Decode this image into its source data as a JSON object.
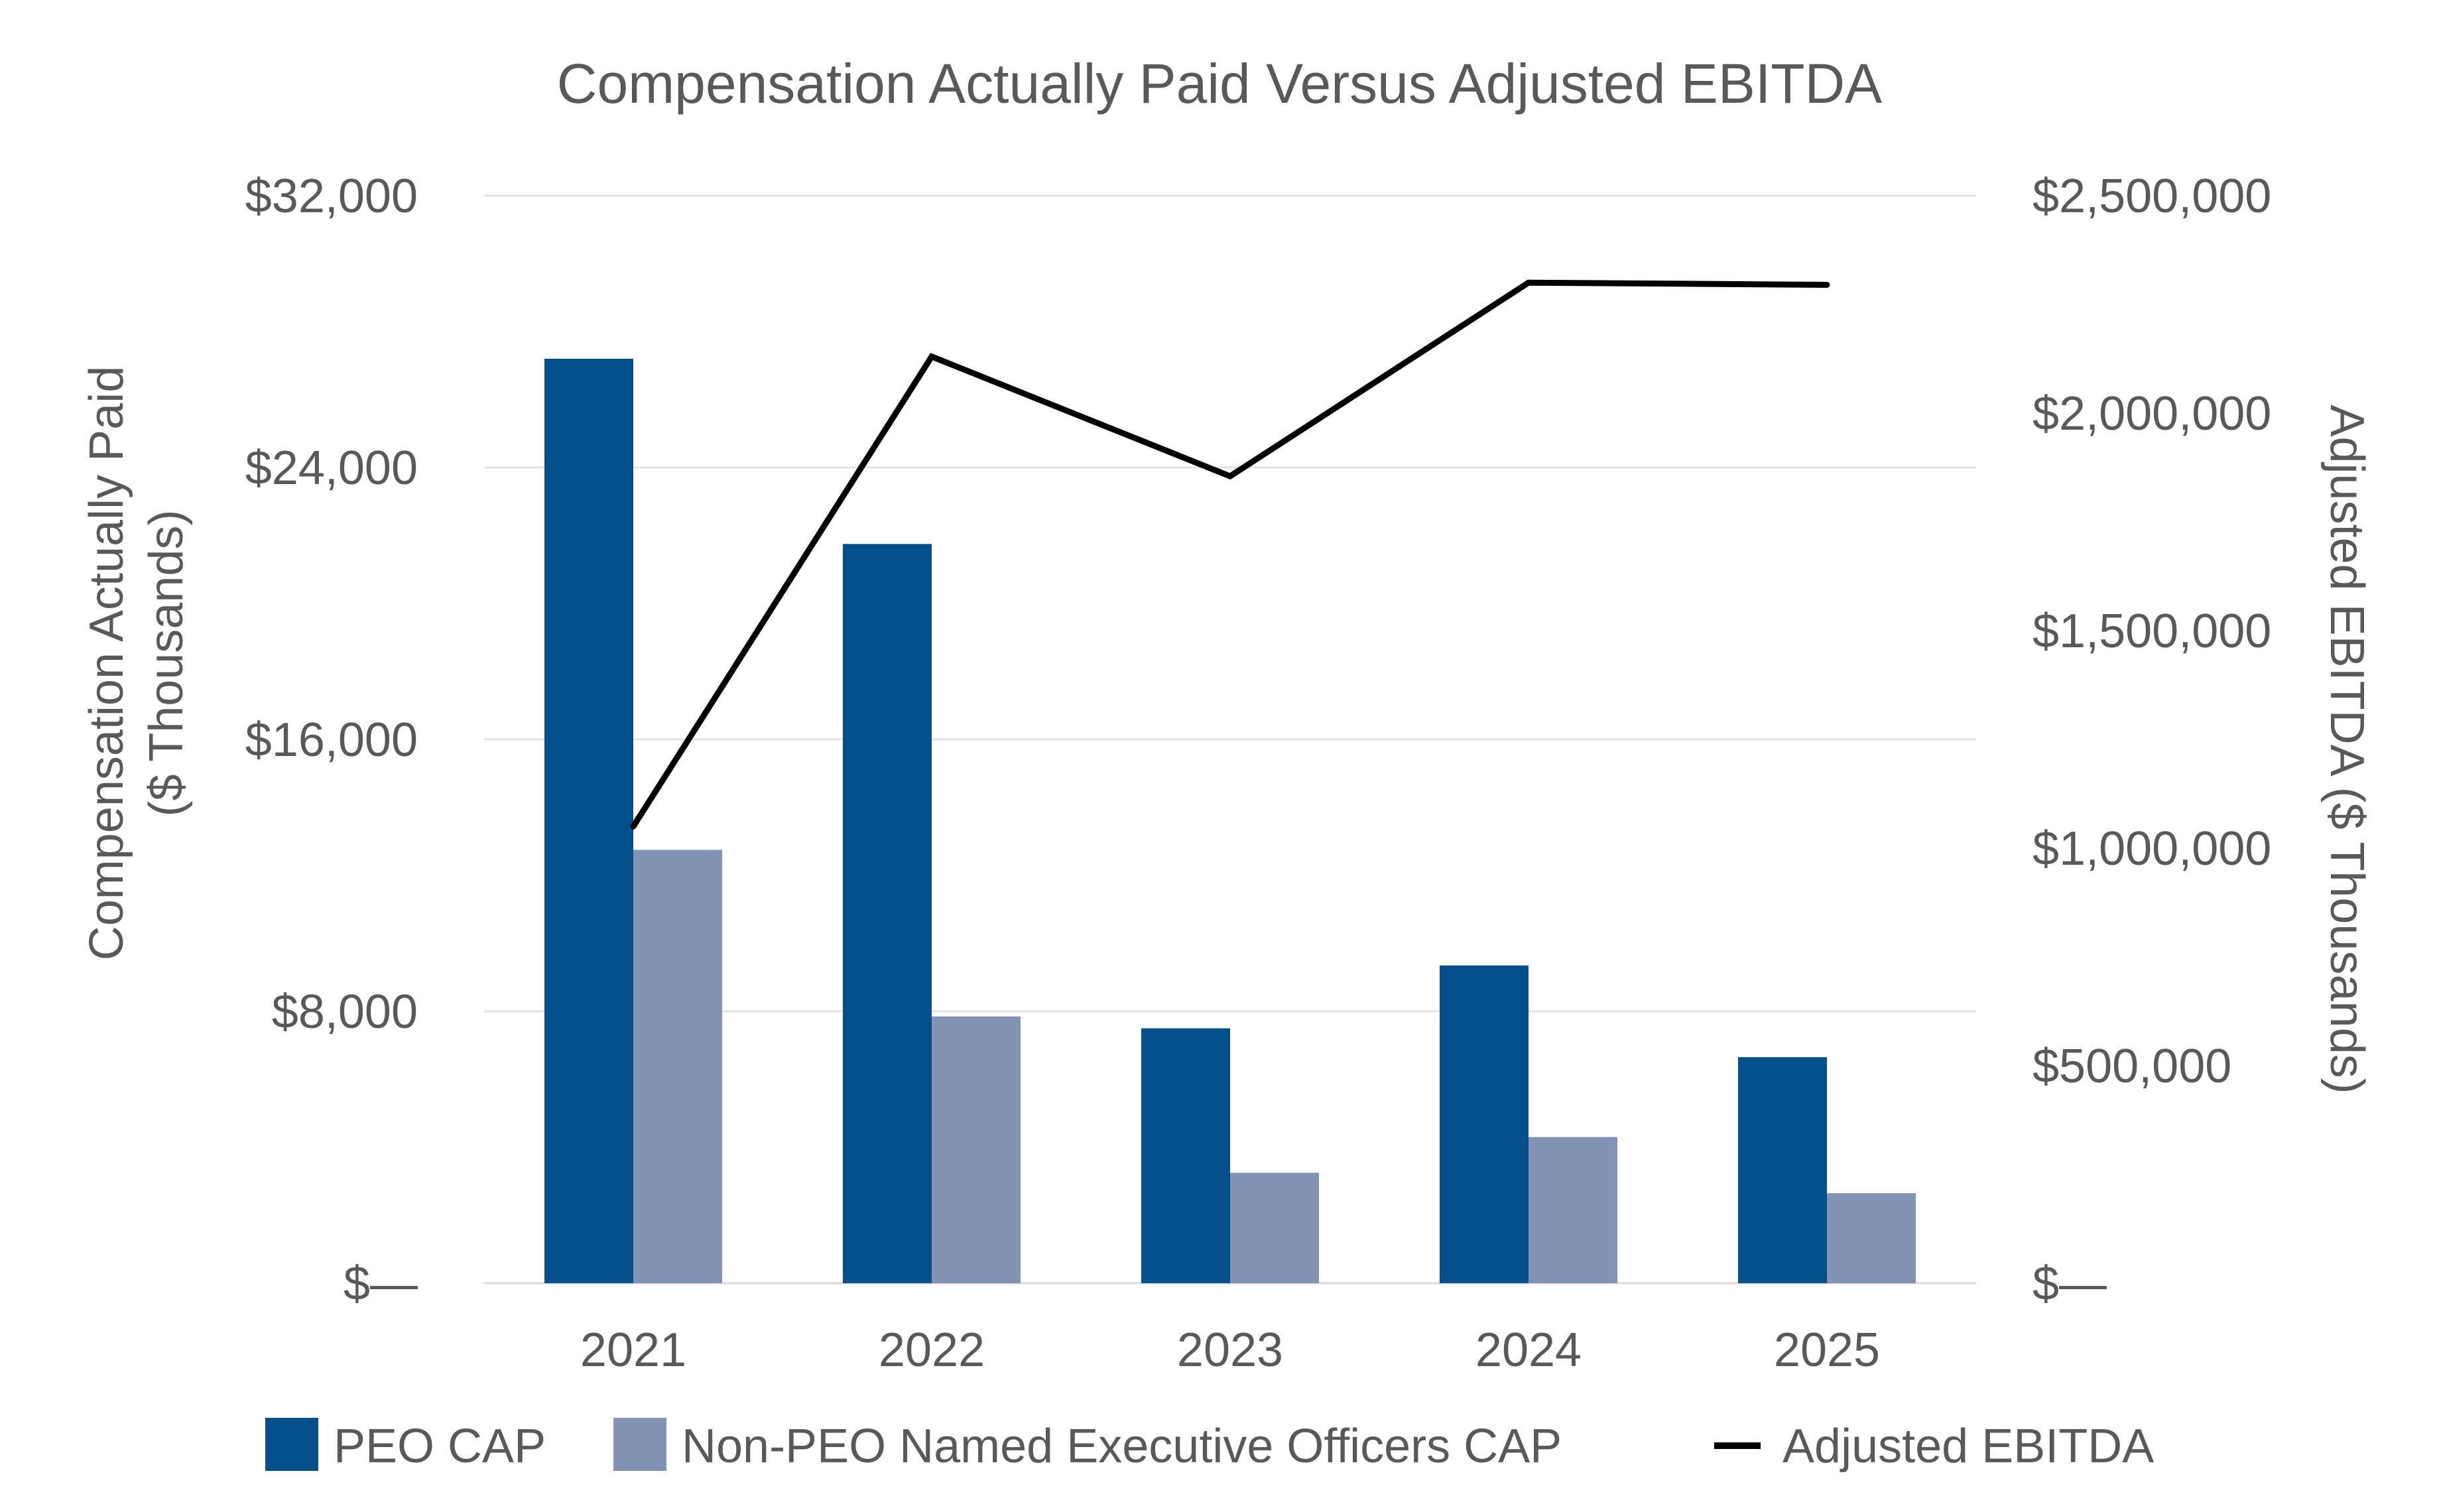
{
  "chart_data": {
    "type": "bar+line",
    "title": "Compensation Actually Paid Versus Adjusted EBITDA",
    "categories": [
      "2021",
      "2022",
      "2023",
      "2024",
      "2025"
    ],
    "series": [
      {
        "name": "PEO CAP",
        "type": "bar",
        "axis": "left",
        "color": "#03508a",
        "values": [
          27200,
          21750,
          7500,
          9350,
          6650
        ]
      },
      {
        "name": "Non-PEO Named Executive Officers CAP",
        "type": "bar",
        "axis": "left",
        "color": "#8493b5",
        "values": [
          12750,
          7850,
          3250,
          4300,
          2650
        ]
      },
      {
        "name": "Adjusted EBITDA",
        "type": "line",
        "axis": "right",
        "color": "#000000",
        "values": [
          1050000,
          2130000,
          1855000,
          2300000,
          2295000
        ]
      }
    ],
    "y_left": {
      "label_line1": "Compensation Actually Paid",
      "label_line2": "($ Thousands)",
      "range": [
        0,
        32000
      ],
      "ticks": [
        0,
        8000,
        16000,
        24000,
        32000
      ],
      "tick_labels": [
        "$—",
        "$8,000",
        "$16,000",
        "$24,000",
        "$32,000"
      ]
    },
    "y_right": {
      "label": "Adjusted EBITDA ($ Thousands)",
      "range": [
        0,
        2500000
      ],
      "ticks": [
        0,
        500000,
        1000000,
        1500000,
        2000000,
        2500000
      ],
      "tick_labels": [
        "$—",
        "$500,000",
        "$1,000,000",
        "$1,500,000",
        "$2,000,000",
        "$2,500,000"
      ]
    },
    "grid": true,
    "legend_position": "bottom",
    "legend": [
      "PEO CAP",
      "Non-PEO Named Executive Officers CAP",
      "Adjusted EBITDA"
    ]
  }
}
